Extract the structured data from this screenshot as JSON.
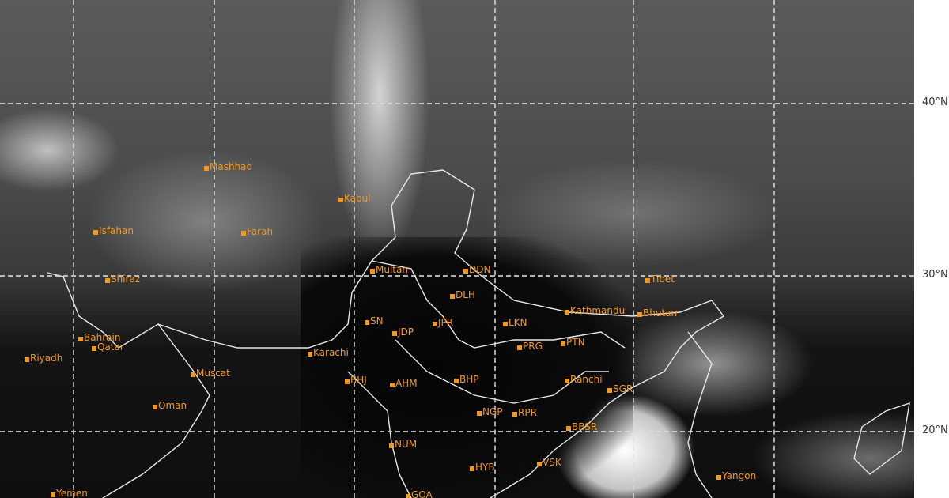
{
  "latitude_labels": [
    "40°N",
    "30°N",
    "20°N"
  ],
  "cities": [
    "Mashhad",
    "Kabul",
    "Isfahan",
    "Farah",
    "Shiraz",
    "Multan",
    "Bahrain",
    "Qatar",
    "Riyadh",
    "Karachi",
    "Muscat",
    "Oman",
    "Yemen",
    "SN",
    "JDP",
    "JPR",
    "DLH",
    "DDN",
    "LKN",
    "PRG",
    "PTN",
    "Kathmandu",
    "Bhutan",
    "Tibet",
    "Ranchi",
    "BHP",
    "AHM",
    "BHJ",
    "NGP",
    "RPR",
    "NUM",
    "HYB",
    "GOA",
    "BBSR",
    "VSK",
    "SGR",
    "Yangon"
  ],
  "colors": {
    "city_marker": "#f29a1e",
    "grid": "#dcdcdc"
  }
}
